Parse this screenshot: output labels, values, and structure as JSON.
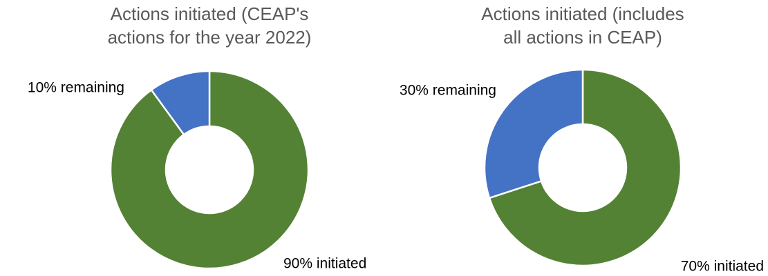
{
  "chart_data": [
    {
      "type": "pie",
      "title": [
        "Actions initiated (CEAP's",
        "actions for the year 2022)"
      ],
      "values": [
        90,
        10
      ],
      "value_labels": [
        "90% initiated",
        "10% remaining"
      ],
      "colors": [
        "#548235",
        "#4472c4"
      ],
      "donut": true
    },
    {
      "type": "pie",
      "title": [
        "Actions initiated (includes",
        "all actions in CEAP)"
      ],
      "values": [
        70,
        30
      ],
      "value_labels": [
        "70% initiated",
        "30% remaining"
      ],
      "colors": [
        "#548235",
        "#4472c4"
      ],
      "donut": true
    }
  ]
}
